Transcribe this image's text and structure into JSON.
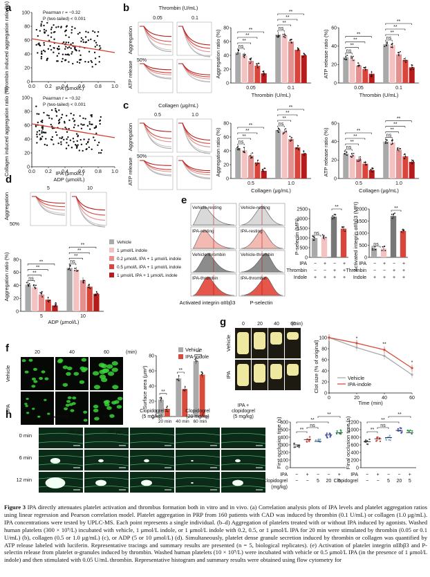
{
  "panels": {
    "a": {
      "letter": "a",
      "plots": [
        {
          "ylabel": "Thrombin induced aggregation ratio (%)",
          "xlabel": "IPA (μmol/L)",
          "stat1": "Pearman r = −0.32",
          "stat2": "P (two-tailed) < 0.001"
        },
        {
          "ylabel": "Collagen induced aggregation ratio (%)",
          "xlabel": "IPA (μmol/L)",
          "stat1": "Pearman r = −0.32",
          "stat2": "P (two-tailed) < 0.001"
        }
      ],
      "xticks": [
        "0.0",
        "0.2",
        "0.4",
        "0.6",
        "0.8",
        "1.0"
      ],
      "yticks": [
        "0",
        "20",
        "40",
        "60",
        "80",
        "100"
      ]
    },
    "b": {
      "letter": "b",
      "title": "Thrombin (U/mL)",
      "doses": [
        "0.05",
        "0.1"
      ],
      "agg_label": "Aggregation",
      "atp_label": "ATP release",
      "scale": "50%",
      "bar_xlabel": "Thrombin (U/mL)",
      "bar1_ylabel": "Aggregation ratio (%)",
      "bar2_ylabel": "ATP release ratio (%)",
      "bar1_yticks": [
        "0",
        "20",
        "40",
        "60",
        "80"
      ],
      "bar2_yticks": [
        "0",
        "20",
        "40",
        "60"
      ]
    },
    "c": {
      "letter": "c",
      "title": "Collagen (μg/mL)",
      "doses": [
        "0.5",
        "1.0"
      ],
      "agg_label": "Aggregation",
      "atp_label": "ATP release",
      "scale": "50%",
      "bar_xlabel": "Collagen (μg/mL)",
      "bar1_ylabel": "Aggregation ratio (%)",
      "bar2_ylabel": "ATP release ratio (%)",
      "bar1_yticks": [
        "0",
        "20",
        "40",
        "60",
        "80"
      ],
      "bar2_yticks": [
        "0",
        "20",
        "40",
        "60"
      ]
    },
    "d": {
      "letter": "d",
      "title": "ADP (μmol/L)",
      "doses": [
        "5",
        "10"
      ],
      "agg_label": "Aggregation",
      "scale": "50%",
      "bar_ylabel": "Aggregation ratio (%)",
      "bar_xlabel": "ADP (μmol/L)",
      "bar_yticks": [
        "0",
        "20",
        "40",
        "60",
        "80"
      ],
      "legend": [
        "Vehicle",
        "1 μmol/L indole",
        "0.2 μmol/L IPA + 1 μmol/L indole",
        "0.5 μmol/L IPA + 1 μmol/L indole",
        "1 μmol/L IPA + 1 μmol/L indole"
      ]
    },
    "e": {
      "letter": "e",
      "histos": [
        "Vehicle-resting",
        "Vehicle-resting",
        "IPA-resting",
        "IPA-resting",
        "Vehicle-thrombin",
        "Vehicle-thrombin",
        "IPA-thrombin",
        "IPA-thrombin"
      ],
      "xlabel1": "Activated integrin αIIbβ3",
      "xlabel2": "P-selectin",
      "bar1_ylabel": "P-selectin (MFI)",
      "bar2_ylabel": "Activated integrin αIIbβ3 (MFI)",
      "bar1_yticks": [
        "0",
        "500",
        "1000",
        "1500",
        "2000",
        "2500"
      ],
      "bar2_yticks": [
        "0",
        "500",
        "1000",
        "1500",
        "2000"
      ],
      "rows": [
        {
          "label": "IPA",
          "vals": [
            "−",
            "+",
            "−",
            "+"
          ]
        },
        {
          "label": "Thrombin",
          "vals": [
            "−",
            "−",
            "+",
            "+"
          ]
        },
        {
          "label": "Indole",
          "vals": [
            "+",
            "+",
            "+",
            "+"
          ]
        }
      ]
    },
    "f": {
      "letter": "f",
      "times": [
        "20",
        "40",
        "60"
      ],
      "unit": "(min)",
      "rows": [
        "Vehicle",
        "IPA"
      ],
      "legend": [
        "Vehicle",
        "IPA-indole"
      ],
      "ylabel": "Surface area (μm²)",
      "yticks": [
        "0",
        "20",
        "40",
        "60",
        "80"
      ],
      "xticks": [
        "20 min",
        "40 min",
        "60 min"
      ]
    },
    "g": {
      "letter": "g",
      "times": [
        "0",
        "20",
        "40",
        "60"
      ],
      "unit": "(min)",
      "rows": [
        "Vehicle",
        "IPA"
      ],
      "ylabel": "Clot size (% of original)",
      "xlabel": "Time (min)",
      "yticks": [
        "0",
        "20",
        "40",
        "60",
        "80",
        "100"
      ],
      "xticks": [
        "0",
        "20",
        "40",
        "60"
      ],
      "legend": [
        "Vehicle",
        "IPA-indole"
      ]
    },
    "h": {
      "letter": "h",
      "cols": [
        "Vehicle",
        "IPA",
        "Clopidogrel (5 mg/kg)",
        "Clopidogrel (20 mg/kg)",
        "IPA + clopidogrel (5 mg/kg)"
      ],
      "rows": [
        "0 min",
        "6 min",
        "12 min"
      ],
      "scalebar": "100 μm",
      "bar1_ylabel": "First occlusion time (s)",
      "bar2_ylabel": "Final occlusion time (s)",
      "bar1_yticks": [
        "0",
        "100",
        "200",
        "300",
        "400",
        "500",
        "600"
      ],
      "bar2_yticks": [
        "0",
        "200",
        "400",
        "600",
        "800",
        "1000",
        "1200"
      ],
      "row_ipa": {
        "label": "IPA",
        "vals": [
          "−",
          "+",
          "−",
          "−",
          "+"
        ]
      },
      "row_clop": {
        "label": "Clopidogrel (mg/kg)",
        "vals": [
          "−",
          "−",
          "5",
          "20",
          "5"
        ]
      }
    },
    "sig": {
      "ns": "ns",
      "two": "**",
      "one": "*"
    }
  },
  "chart_data": [
    {
      "type": "scatter",
      "panel": "a-top",
      "xlabel": "IPA (μmol/L)",
      "ylabel": "Thrombin induced aggregation ratio (%)",
      "xlim": [
        0,
        1.0
      ],
      "ylim": [
        0,
        100
      ],
      "regression": {
        "x": [
          0.0,
          1.0
        ],
        "y": [
          62,
          42
        ]
      }
    },
    {
      "type": "scatter",
      "panel": "a-bottom",
      "xlabel": "IPA (μmol/L)",
      "ylabel": "Collagen induced aggregation ratio (%)",
      "xlim": [
        0,
        1.0
      ],
      "ylim": [
        0,
        100
      ],
      "regression": {
        "x": [
          0.0,
          1.0
        ],
        "y": [
          62,
          42
        ]
      }
    },
    {
      "type": "bar",
      "panel": "b-aggregation",
      "categories": [
        "0.05",
        "0.1"
      ],
      "ylim": [
        0,
        80
      ],
      "series": [
        {
          "name": "Vehicle",
          "values": [
            44,
            70
          ]
        },
        {
          "name": "1 μmol/L indole",
          "values": [
            40,
            69
          ]
        },
        {
          "name": "0.2 μmol/L IPA + 1 μmol/L indole",
          "values": [
            32,
            60
          ]
        },
        {
          "name": "0.5 μmol/L IPA + 1 μmol/L indole",
          "values": [
            25,
            48
          ]
        },
        {
          "name": "1 μmol/L IPA + 1 μmol/L indole",
          "values": [
            14,
            40
          ]
        }
      ]
    },
    {
      "type": "bar",
      "panel": "b-atp",
      "categories": [
        "0.05",
        "0.1"
      ],
      "ylim": [
        0,
        60
      ],
      "series": [
        {
          "name": "Vehicle",
          "values": [
            28,
            42
          ]
        },
        {
          "name": "1 μmol/L indole",
          "values": [
            26,
            41
          ]
        },
        {
          "name": "0.2 μmol/L IPA + 1 μmol/L indole",
          "values": [
            19,
            31
          ]
        },
        {
          "name": "0.5 μmol/L IPA + 1 μmol/L indole",
          "values": [
            15,
            25
          ]
        },
        {
          "name": "1 μmol/L IPA + 1 μmol/L indole",
          "values": [
            10,
            17
          ]
        }
      ]
    },
    {
      "type": "bar",
      "panel": "c-aggregation",
      "categories": [
        "0.5",
        "1.0"
      ],
      "ylim": [
        0,
        80
      ],
      "series": [
        {
          "name": "Vehicle",
          "values": [
            44,
            70
          ]
        },
        {
          "name": "1 μmol/L indole",
          "values": [
            41,
            68
          ]
        },
        {
          "name": "0.2 μmol/L IPA + 1 μmol/L indole",
          "values": [
            33,
            57
          ]
        },
        {
          "name": "0.5 μmol/L IPA + 1 μmol/L indole",
          "values": [
            23,
            45
          ]
        },
        {
          "name": "1 μmol/L IPA + 1 μmol/L indole",
          "values": [
            11,
            36
          ]
        }
      ]
    },
    {
      "type": "bar",
      "panel": "c-atp",
      "categories": [
        "0.5",
        "1.0"
      ],
      "ylim": [
        0,
        60
      ],
      "series": [
        {
          "name": "Vehicle",
          "values": [
            27,
            40
          ]
        },
        {
          "name": "1 μmol/L indole",
          "values": [
            25,
            39
          ]
        },
        {
          "name": "0.2 μmol/L IPA + 1 μmol/L indole",
          "values": [
            21,
            31
          ]
        },
        {
          "name": "0.5 μmol/L IPA + 1 μmol/L indole",
          "values": [
            16,
            24
          ]
        },
        {
          "name": "1 μmol/L IPA + 1 μmol/L indole",
          "values": [
            9,
            18
          ]
        }
      ]
    },
    {
      "type": "bar",
      "panel": "d",
      "categories": [
        "5",
        "10"
      ],
      "ylim": [
        0,
        80
      ],
      "series": [
        {
          "name": "Vehicle",
          "values": [
            41,
            67
          ]
        },
        {
          "name": "1 μmol/L indole",
          "values": [
            37,
            64
          ]
        },
        {
          "name": "0.2 μmol/L IPA + 1 μmol/L indole",
          "values": [
            26,
            48
          ]
        },
        {
          "name": "0.5 μmol/L IPA + 1 μmol/L indole",
          "values": [
            18,
            38
          ]
        },
        {
          "name": "1 μmol/L IPA + 1 μmol/L indole",
          "values": [
            9,
            27
          ]
        }
      ]
    },
    {
      "type": "bar",
      "panel": "e-p-selectin",
      "categories": [
        "1",
        "2",
        "3",
        "4"
      ],
      "ylim": [
        0,
        2500
      ],
      "values": [
        1000,
        1030,
        2100,
        1480
      ]
    },
    {
      "type": "bar",
      "panel": "e-integrin",
      "categories": [
        "1",
        "2",
        "3",
        "4"
      ],
      "ylim": [
        0,
        2000
      ],
      "values": [
        370,
        360,
        1710,
        1090
      ]
    },
    {
      "type": "bar",
      "panel": "f",
      "categories": [
        "20 min",
        "40 min",
        "60 min"
      ],
      "ylim": [
        0,
        80
      ],
      "series": [
        {
          "name": "Vehicle",
          "values": [
            22,
            50,
            73
          ]
        },
        {
          "name": "IPA-indole",
          "values": [
            10,
            36,
            55
          ]
        }
      ]
    },
    {
      "type": "line",
      "panel": "g",
      "x": [
        0,
        20,
        40,
        60
      ],
      "xlim": [
        0,
        60
      ],
      "ylim": [
        0,
        100
      ],
      "series": [
        {
          "name": "Vehicle",
          "values": [
            100,
            82,
            67,
            33
          ]
        },
        {
          "name": "IPA-indole",
          "values": [
            100,
            90,
            78,
            45
          ]
        }
      ]
    },
    {
      "type": "bar",
      "panel": "h-first",
      "categories": [
        "1",
        "2",
        "3",
        "4",
        "5"
      ],
      "ylim": [
        0,
        600
      ],
      "values": [
        300,
        370,
        345,
        430,
        460
      ]
    },
    {
      "type": "bar",
      "panel": "h-final",
      "categories": [
        "1",
        "2",
        "3",
        "4",
        "5"
      ],
      "ylim": [
        0,
        1200
      ],
      "values": [
        680,
        760,
        790,
        980,
        920
      ]
    }
  ],
  "caption": {
    "fig_label": "Figure 3",
    "text": "IPA directly attenuates platelet activation and thrombus formation both in vitro and in vivo. (a) Correlation analysis plots of IPA levels and platelet aggregation ratios using linear regression and Pearson correlation model. Platelet aggregation in PRP from 160 patients with CAD was induced by thrombin (0.1 U/mL) or collagen (1.0 μg/mL). IPA concentrations were tested by UPLC-MS. Each point represents a single individual. (b–d) Aggregation of platelets treated with or without IPA induced by agonists. Washed human platelets (300 × 10⁹/L) incubated with vehicle, 1 μmol/L indole, or 1 μmol/L indole with 0.2, 0.5, or 1 μmol/L IPA for 20 min were stimulated by thrombin (0.05 or 0.1 U/mL) (b), collagen (0.5 or 1.0 μg/mL) (c), or ADP (5 or 10 μmol/L) (d). Simultaneously, platelet dense granule secretion induced by thrombin or collagen was quantified by ATP release labeled with luciferin. Representative tracings and summary results are presented (n = 5, biological replicates). (e) Activation of platelet integrin αIIbβ3 and P-selectin release from platelet α-granules induced by thrombin. Washed human platelets (10 × 10⁹/L) were incubated with vehicle or 0.5 μmol/L IPA (in the presence of 1 μmol/L indole) and then stimulated with 0.05 U/mL thrombin. Representative histogram and summary results were obtained using flow cytometry for"
  },
  "colors": {
    "vehicle": "#a9a9a9",
    "indole": "#f5c2c2",
    "ipa02": "#e58f8f",
    "ipa05": "#d9453a",
    "ipa1": "#b71c1c",
    "ipa_line": "#d84a3a"
  }
}
